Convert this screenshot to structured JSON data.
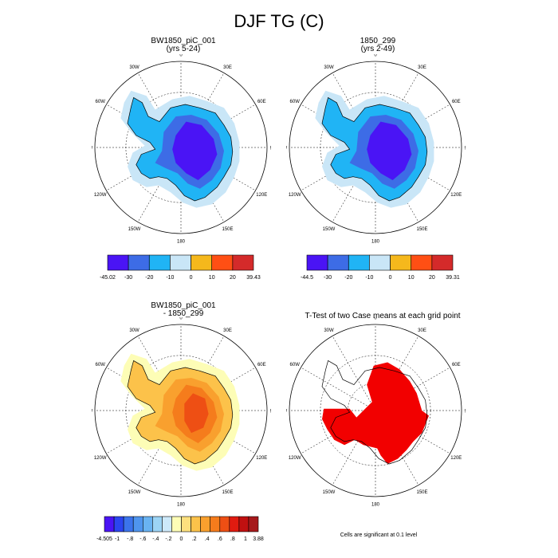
{
  "figure_title": "DJF TG (C)",
  "lon_labels": [
    "0",
    "30E",
    "60E",
    "90E",
    "120E",
    "150E",
    "180",
    "150W",
    "120W",
    "90W",
    "60W",
    "30W"
  ],
  "colors": {
    "abs_scale": [
      "#4a14f5",
      "#3d6ce6",
      "#20b4f5",
      "#c9e6f7",
      "#f5b81c",
      "#ff4f14",
      "#d42a2a"
    ],
    "diff_scale": [
      "#4a14f5",
      "#2b45f0",
      "#3b74ec",
      "#4f95ee",
      "#69b3f2",
      "#9cd4f5",
      "#cde9fa",
      "#fdfdb6",
      "#fde07e",
      "#fcc24a",
      "#f9a02e",
      "#f57c1c",
      "#ee4f14",
      "#e01b10",
      "#c01010",
      "#a6191b"
    ],
    "ttest": "#f20000",
    "continent_abs": [
      "#c9e6f7",
      "#20b4f5",
      "#3d6ce6",
      "#4a14f5"
    ],
    "continent_diff": [
      "#fdfdb6",
      "#fde07e",
      "#fcc24a",
      "#f9a02e",
      "#f57c1c",
      "#ee4f14"
    ]
  },
  "panels": {
    "p1": {
      "title_line1": "BW1850_piC_001",
      "title_line2": "(yrs 5-24)"
    },
    "p2": {
      "title_line1": "1850_299",
      "title_line2": "(yrs 2-49)"
    },
    "p3": {
      "title_line1": "BW1850_piC_001",
      "title_line2": "- 1850_299"
    },
    "p4": {
      "title_line1": "T-Test of two Case means at each grid point"
    }
  },
  "colorbars": {
    "cb1": {
      "labels": [
        "-45.02",
        "-30",
        "-20",
        "-10",
        "0",
        "10",
        "20",
        "39.43"
      ]
    },
    "cb2": {
      "labels": [
        "-44.5",
        "-30",
        "-20",
        "-10",
        "0",
        "10",
        "20",
        "39.31"
      ]
    },
    "cb3": {
      "labels": [
        "-4.505",
        "-1",
        "-.8",
        "-.6",
        "-.4",
        "-.2",
        "0",
        ".2",
        ".4",
        ".6",
        ".8",
        "1",
        "3.88"
      ]
    }
  },
  "footnote": "Cells are significant at 0.1 level"
}
